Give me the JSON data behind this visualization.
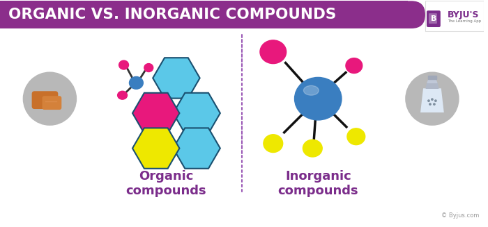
{
  "title": "ORGANIC VS. INORGANIC COMPOUNDS",
  "title_bg_color": "#8B2E8B",
  "title_text_color": "#FFFFFF",
  "bg_color": "#FFFFFF",
  "label_organic": "Organic\ncompounds",
  "label_inorganic": "Inorganic\ncompounds",
  "label_color": "#7B2D8B",
  "copyright": "© Byjus.com",
  "byju_color": "#7B2D8B",
  "divider_color": "#9B59B6",
  "hex_cyan": "#5BC8E8",
  "hex_cyan_dark": "#3A8FB5",
  "hex_magenta": "#E8187C",
  "hex_yellow": "#EEE800",
  "hex_edge": "#2a6080",
  "node_blue": "#3A7EC0",
  "node_pink": "#E8187C",
  "node_yellow": "#EEE800"
}
